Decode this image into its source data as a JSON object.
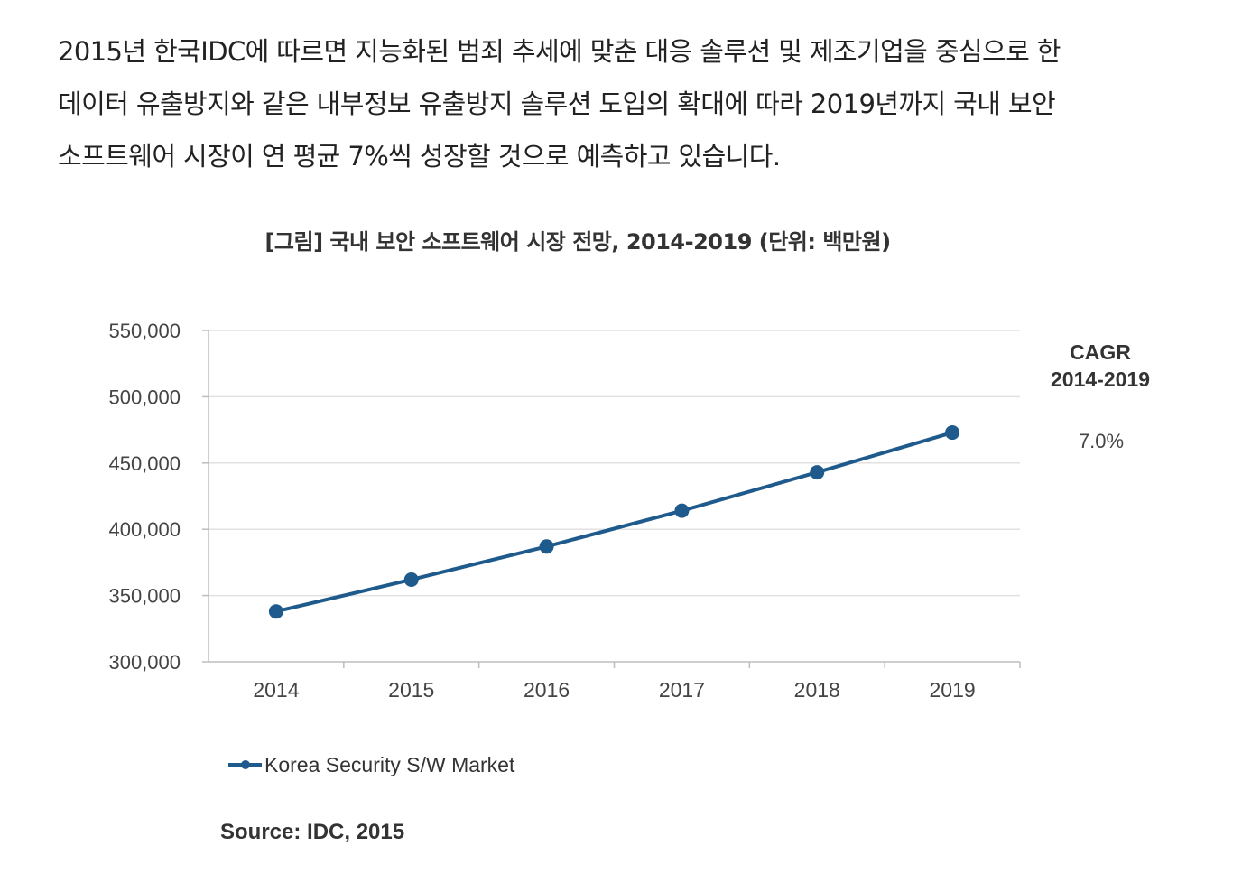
{
  "article": {
    "lines": [
      "2015년 한국IDC에 따르면 지능화된 범죄 추세에 맞춘 대응 솔루션 및 제조기업을 중심으로 한",
      "데이터 유출방지와 같은 내부정보 유출방지 솔루션 도입의 확대에 따라 2019년까지 국내 보안",
      "소프트웨어 시장이 연 평균 7%씩 성장할 것으로 예측하고 있습니다."
    ]
  },
  "chart_data": {
    "type": "line",
    "title": "[그림] 국내 보안 소프트웨어 시장 전망, 2014-2019 (단위: 백만원)",
    "x": [
      "2014",
      "2015",
      "2016",
      "2017",
      "2018",
      "2019"
    ],
    "series": [
      {
        "name": "Korea Security S/W Market",
        "color": "#1f5a8c",
        "values": [
          338000,
          362000,
          387000,
          414000,
          443000,
          473000
        ]
      }
    ],
    "ylim": [
      300000,
      550000
    ],
    "yticks": [
      300000,
      350000,
      400000,
      450000,
      500000,
      550000
    ],
    "ytick_labels": [
      "300,000",
      "350,000",
      "400,000",
      "450,000",
      "500,000",
      "550,000"
    ],
    "grid": true,
    "legend_position": "bottom-left",
    "annotation": {
      "title_line1": "CAGR",
      "title_line2": "2014-2019",
      "value": "7.0%"
    },
    "source": "Source: IDC, 2015"
  }
}
